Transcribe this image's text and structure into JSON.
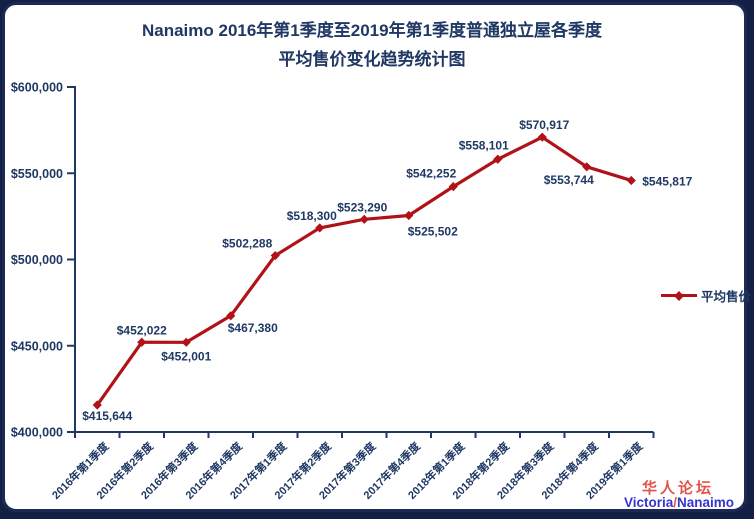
{
  "title": {
    "line1": "Nanaimo 2016年第1季度至2019年第1季度普通独立屋各季度",
    "line2": "平均售价变化趋势统计图"
  },
  "watermark": {
    "line1": "华人论坛",
    "line2_left": "Victoria",
    "line2_slash": "/",
    "line2_right": "Nanaimo"
  },
  "colors": {
    "line": "#B01218",
    "text_navy": "#1F3864",
    "axis": "#1F3864",
    "frame_border": "#1B2A55",
    "page_bg": "#131F44",
    "watermark_red": "#E25349",
    "watermark_blue": "#3434CF"
  },
  "chart_data": {
    "type": "line",
    "title": "Nanaimo 2016年第1季度至2019年第1季度普通独立屋各季度平均售价变化趋势统计图",
    "legend": "平均售价",
    "legend_position": "right",
    "grid": false,
    "ylim": [
      400000,
      600000
    ],
    "categories": [
      "2016年第1季度",
      "2016年第2季度",
      "2016年第3季度",
      "2016年第4季度",
      "2017年第1季度",
      "2017年第2季度",
      "2017年第3季度",
      "2017年第4季度",
      "2018年第1季度",
      "2018年第2季度",
      "2018年第3季度",
      "2018年第4季度",
      "2019年第1季度"
    ],
    "series": [
      {
        "name": "平均售价",
        "values": [
          415644,
          452022,
          452001,
          467380,
          502288,
          518300,
          523290,
          525502,
          542252,
          558101,
          570917,
          553744,
          545817
        ]
      }
    ],
    "data_labels": [
      "$415,644",
      "$452,022",
      "$452,001",
      "$467,380",
      "$502,288",
      "$518,300",
      "$523,290",
      "$525,502",
      "$542,252",
      "$558,101",
      "$570,917",
      "$553,744",
      "$545,817"
    ],
    "label_offsets": [
      [
        10,
        15
      ],
      [
        0,
        -8
      ],
      [
        0,
        18
      ],
      [
        22,
        16
      ],
      [
        -28,
        -8
      ],
      [
        -8,
        -8
      ],
      [
        -2,
        -8
      ],
      [
        24,
        20
      ],
      [
        -22,
        -9
      ],
      [
        -14,
        -10
      ],
      [
        2,
        -8
      ],
      [
        -18,
        17
      ],
      [
        11,
        5,
        "start"
      ]
    ],
    "y_ticks": [
      {
        "value": 400000,
        "label": "$400,000"
      },
      {
        "value": 450000,
        "label": "$450,000"
      },
      {
        "value": 500000,
        "label": "$500,000"
      },
      {
        "value": 550000,
        "label": "$550,000"
      },
      {
        "value": 600000,
        "label": "$600,000"
      }
    ]
  }
}
